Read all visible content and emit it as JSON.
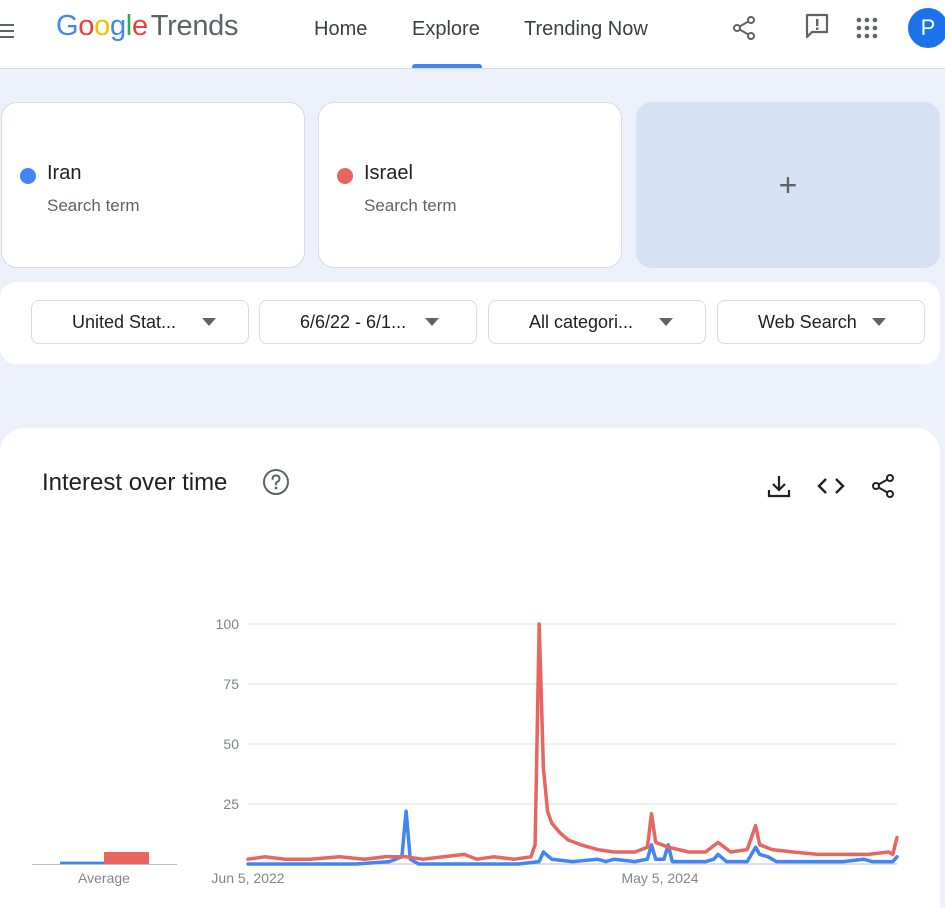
{
  "header": {
    "logo": {
      "g1": "G",
      "g2": "o",
      "g3": "o",
      "g4": "g",
      "g5": "l",
      "g6": "e",
      "product": "Trends"
    },
    "nav": {
      "home": "Home",
      "explore": "Explore",
      "trending": "Trending Now"
    },
    "avatar_letter": "P",
    "icons": [
      "menu-icon",
      "share-icon",
      "feedback-icon",
      "apps-icon"
    ]
  },
  "terms": [
    {
      "name": "Iran",
      "subtitle": "Search term",
      "color": "#4285f4"
    },
    {
      "name": "Israel",
      "subtitle": "Search term",
      "color": "#e8665f"
    }
  ],
  "add_term_symbol": "+",
  "filters": {
    "region": "United Stat...",
    "date_range": "6/6/22 - 6/1...",
    "category": "All categori...",
    "search_type": "Web Search"
  },
  "interest_card": {
    "title": "Interest over time",
    "average_label": "Average",
    "icons": [
      "help-icon",
      "download-icon",
      "embed-icon",
      "share-icon"
    ]
  },
  "chart_data": {
    "type": "line",
    "x_tick_labels": [
      "Jun 5, 2022",
      "May 5, 2024"
    ],
    "y_ticks": [
      25,
      50,
      75,
      100
    ],
    "ylim": [
      0,
      100
    ],
    "grid": true,
    "x_start": "2022-06-05",
    "x_end": "2025-06-01",
    "averages": {
      "Iran": 1,
      "Israel": 5
    },
    "series": [
      {
        "name": "Iran",
        "color": "#4285f4",
        "points": [
          [
            "2022-06-05",
            0
          ],
          [
            "2022-09-04",
            0
          ],
          [
            "2022-12-04",
            0
          ],
          [
            "2023-01-29",
            1
          ],
          [
            "2023-02-19",
            3
          ],
          [
            "2023-02-26",
            22
          ],
          [
            "2023-03-05",
            2
          ],
          [
            "2023-03-19",
            0
          ],
          [
            "2023-06-04",
            0
          ],
          [
            "2023-09-03",
            0
          ],
          [
            "2023-10-08",
            1
          ],
          [
            "2023-10-15",
            5
          ],
          [
            "2023-10-29",
            2
          ],
          [
            "2023-12-03",
            1
          ],
          [
            "2024-01-14",
            2
          ],
          [
            "2024-01-28",
            1
          ],
          [
            "2024-02-11",
            2
          ],
          [
            "2024-03-17",
            1
          ],
          [
            "2024-04-07",
            2
          ],
          [
            "2024-04-14",
            8
          ],
          [
            "2024-04-21",
            2
          ],
          [
            "2024-05-05",
            2
          ],
          [
            "2024-05-12",
            8
          ],
          [
            "2024-05-19",
            1
          ],
          [
            "2024-07-14",
            1
          ],
          [
            "2024-07-28",
            2
          ],
          [
            "2024-08-04",
            4
          ],
          [
            "2024-08-18",
            1
          ],
          [
            "2024-09-22",
            1
          ],
          [
            "2024-10-06",
            7
          ],
          [
            "2024-10-13",
            4
          ],
          [
            "2024-10-27",
            3
          ],
          [
            "2024-11-10",
            1
          ],
          [
            "2025-01-05",
            1
          ],
          [
            "2025-03-02",
            1
          ],
          [
            "2025-04-06",
            2
          ],
          [
            "2025-04-20",
            1
          ],
          [
            "2025-05-25",
            1
          ],
          [
            "2025-06-01",
            3
          ]
        ]
      },
      {
        "name": "Israel",
        "color": "#e8665f",
        "points": [
          [
            "2022-06-05",
            2
          ],
          [
            "2022-07-03",
            3
          ],
          [
            "2022-08-07",
            2
          ],
          [
            "2022-09-18",
            2
          ],
          [
            "2022-11-06",
            3
          ],
          [
            "2022-12-18",
            2
          ],
          [
            "2023-01-22",
            3
          ],
          [
            "2023-02-26",
            3
          ],
          [
            "2023-03-26",
            2
          ],
          [
            "2023-04-30",
            3
          ],
          [
            "2023-06-04",
            4
          ],
          [
            "2023-06-25",
            2
          ],
          [
            "2023-07-23",
            3
          ],
          [
            "2023-08-27",
            2
          ],
          [
            "2023-09-24",
            3
          ],
          [
            "2023-10-01",
            8
          ],
          [
            "2023-10-08",
            100
          ],
          [
            "2023-10-15",
            40
          ],
          [
            "2023-10-22",
            22
          ],
          [
            "2023-10-29",
            17
          ],
          [
            "2023-11-12",
            13
          ],
          [
            "2023-11-26",
            10
          ],
          [
            "2023-12-17",
            8
          ],
          [
            "2024-01-14",
            6
          ],
          [
            "2024-02-11",
            5
          ],
          [
            "2024-03-17",
            5
          ],
          [
            "2024-04-07",
            7
          ],
          [
            "2024-04-14",
            21
          ],
          [
            "2024-04-21",
            9
          ],
          [
            "2024-05-12",
            7
          ],
          [
            "2024-06-16",
            5
          ],
          [
            "2024-07-14",
            5
          ],
          [
            "2024-08-04",
            9
          ],
          [
            "2024-08-25",
            5
          ],
          [
            "2024-09-22",
            6
          ],
          [
            "2024-10-06",
            16
          ],
          [
            "2024-10-13",
            8
          ],
          [
            "2024-11-03",
            6
          ],
          [
            "2024-12-08",
            5
          ],
          [
            "2025-01-19",
            4
          ],
          [
            "2025-03-02",
            4
          ],
          [
            "2025-04-13",
            4
          ],
          [
            "2025-05-18",
            5
          ],
          [
            "2025-05-25",
            4
          ],
          [
            "2025-06-01",
            11
          ]
        ]
      }
    ]
  }
}
